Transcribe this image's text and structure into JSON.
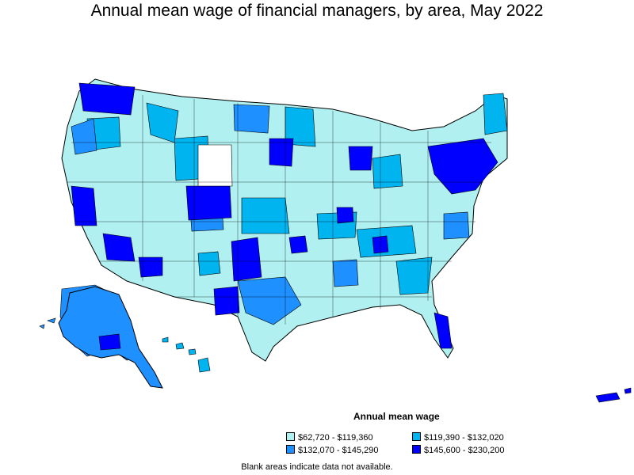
{
  "title": "Annual mean wage of financial managers, by area, May 2022",
  "legend": {
    "title": "Annual mean wage",
    "items": [
      {
        "label": "$62,720 - $119,360",
        "color": "#b0f0f0"
      },
      {
        "label": "$119,390 - $132,020",
        "color": "#00b4f0"
      },
      {
        "label": "$132,070 - $145,290",
        "color": "#1e90ff"
      },
      {
        "label": "$145,600 - $230,200",
        "color": "#0000ff"
      }
    ]
  },
  "footnote": "Blank areas indicate data not available.",
  "colors": {
    "no_data": "#ffffff",
    "border": "#000000"
  }
}
